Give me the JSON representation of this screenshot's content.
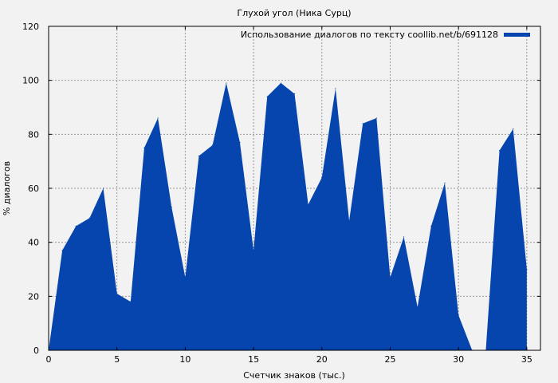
{
  "chart_data": {
    "type": "area",
    "title": "Глухой угол (Ника Сурц)",
    "xlabel": "Счетчик знаков (тыс.)",
    "ylabel": "% диалогов",
    "xlim": [
      0,
      36
    ],
    "ylim": [
      0,
      120
    ],
    "x_ticks": [
      0,
      5,
      10,
      15,
      20,
      25,
      30,
      35
    ],
    "y_ticks": [
      0,
      20,
      40,
      60,
      80,
      100,
      120
    ],
    "grid": true,
    "legend_position": "top-right",
    "series": [
      {
        "name": "Использование диалогов по тексту coollib.net/b/691128",
        "color": "#0645ad",
        "x": [
          0,
          1,
          2,
          3,
          4,
          5,
          6,
          7,
          8,
          9,
          10,
          11,
          12,
          13,
          14,
          15,
          16,
          17,
          18,
          19,
          20,
          21,
          22,
          23,
          24,
          25,
          26,
          27,
          28,
          29,
          30,
          31,
          32,
          33,
          34,
          35
        ],
        "values": [
          0,
          37,
          46,
          49,
          60,
          21,
          18,
          75,
          86,
          53,
          27,
          72,
          76,
          99,
          77,
          37,
          94,
          99,
          95,
          54,
          64,
          97,
          48,
          84,
          86,
          27,
          42,
          16,
          46,
          62,
          13,
          0,
          0,
          74,
          82,
          30
        ]
      }
    ]
  }
}
